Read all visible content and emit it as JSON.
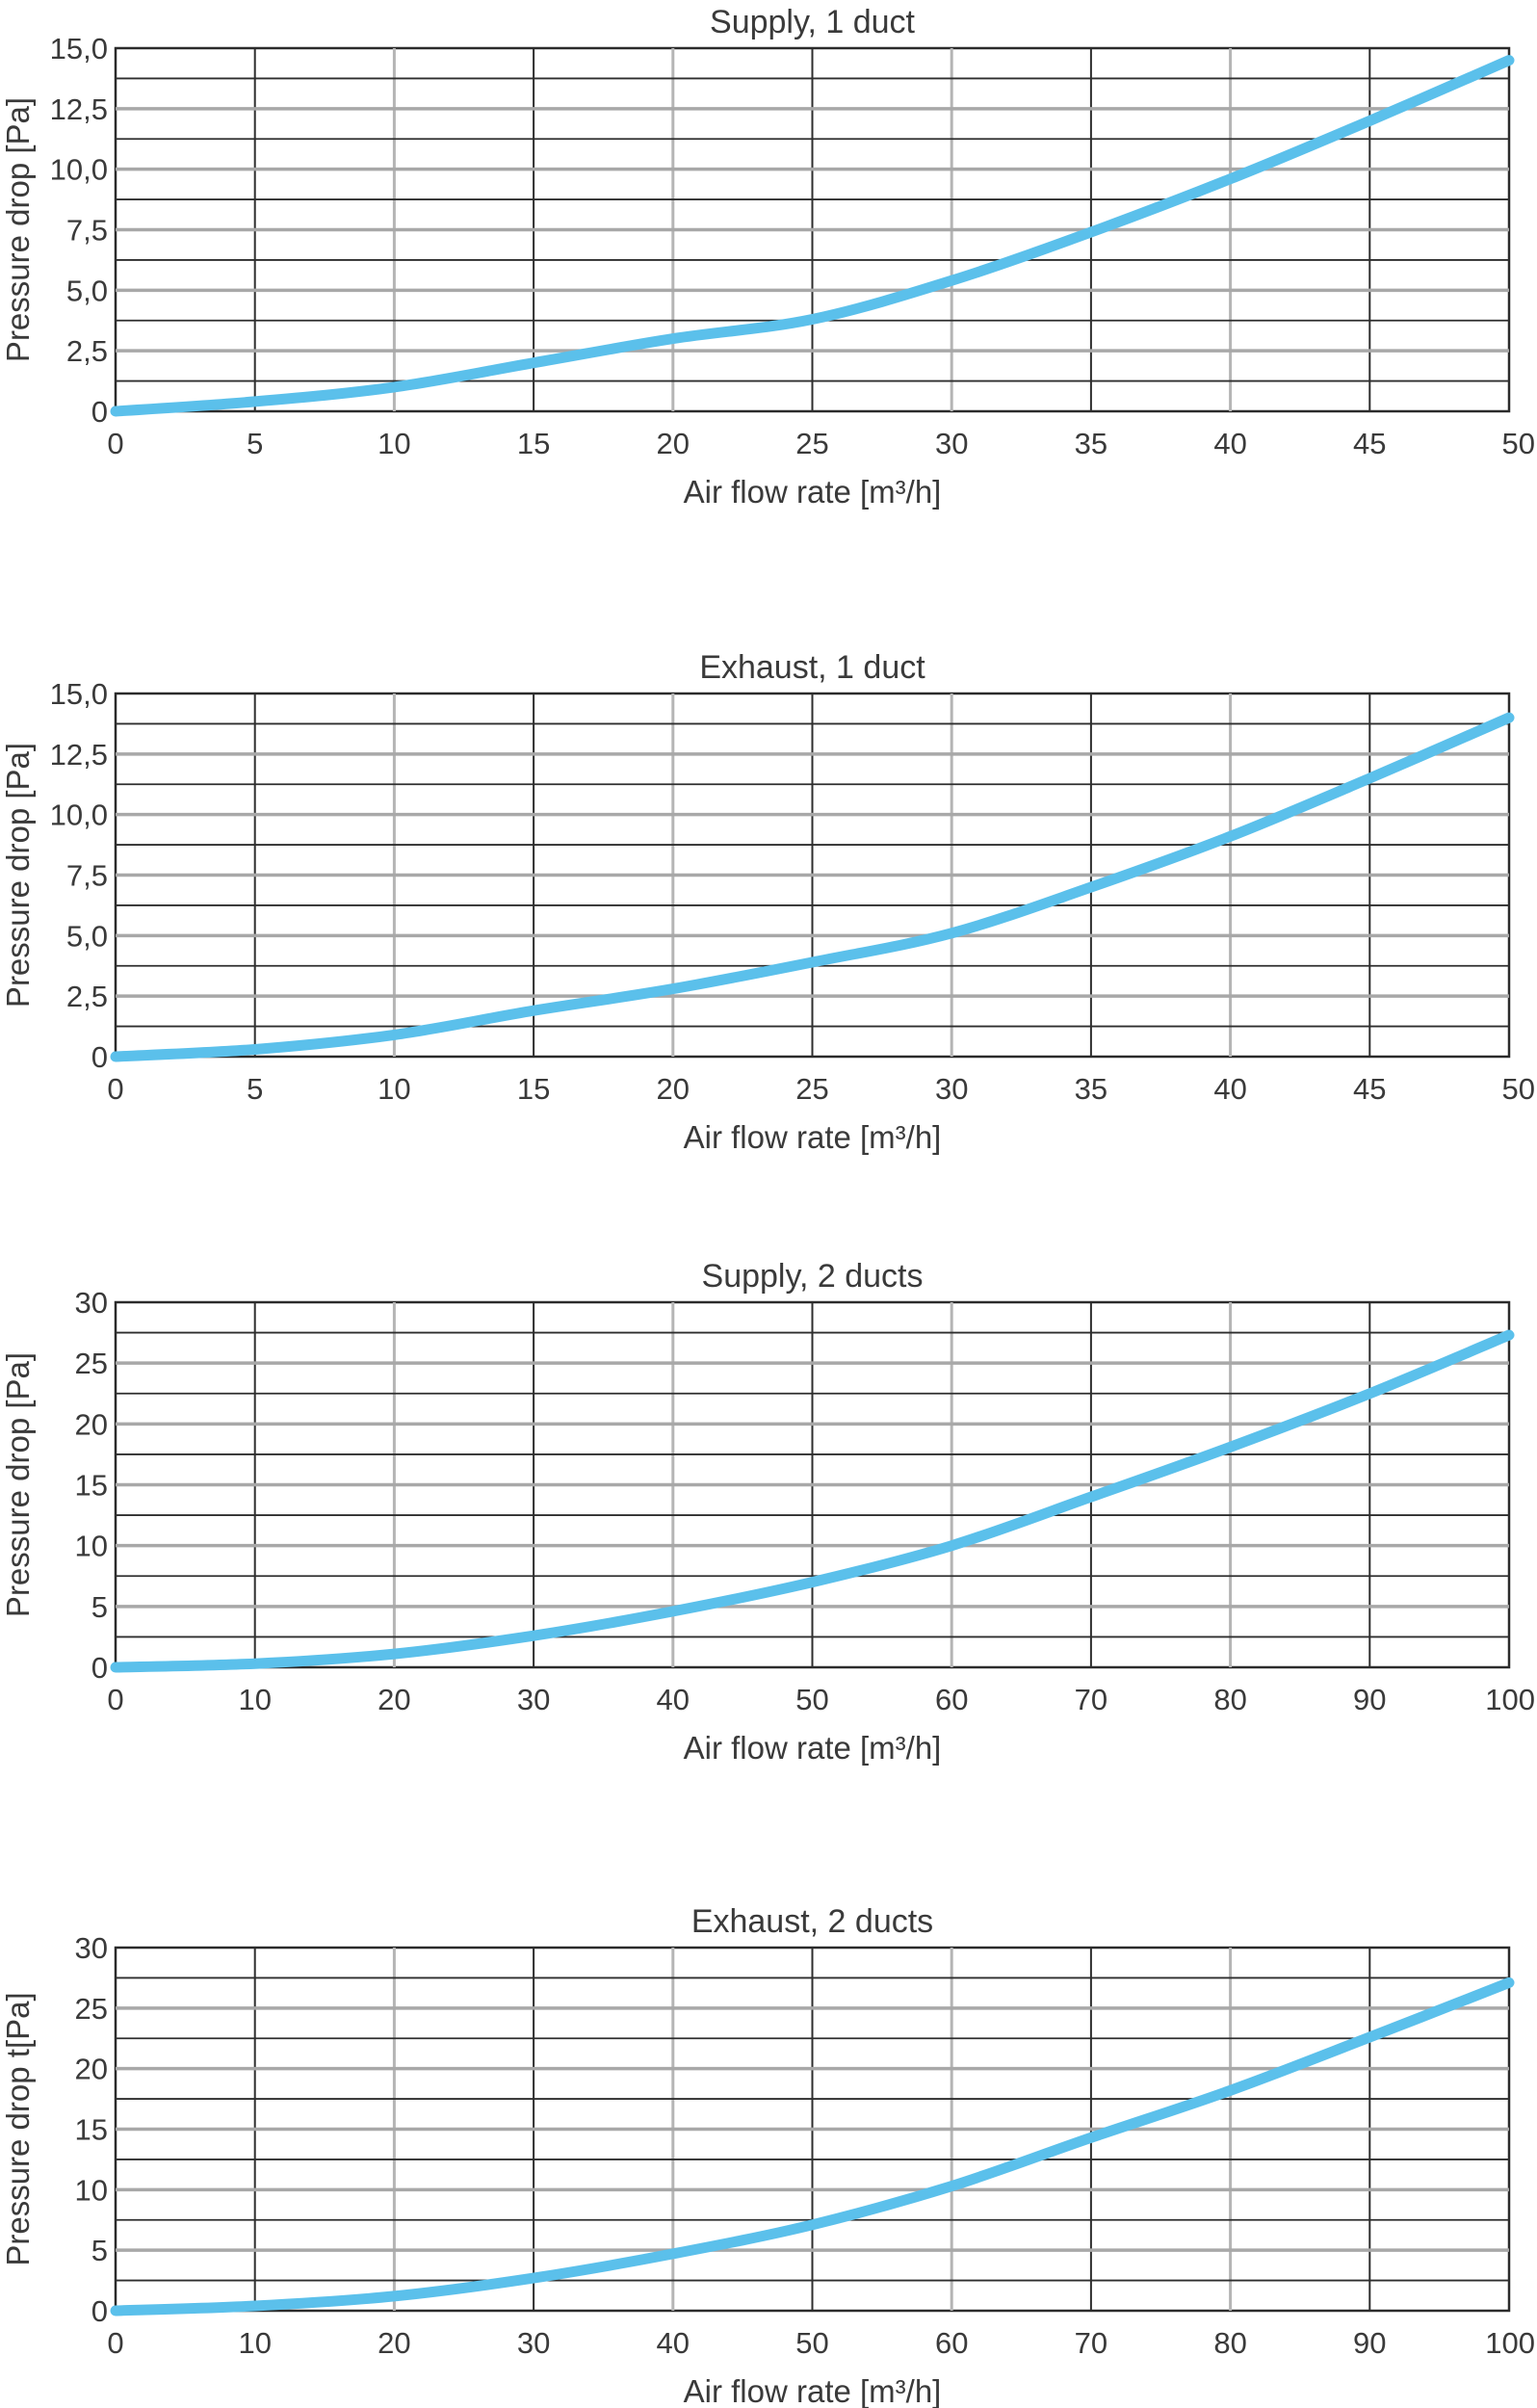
{
  "chart_data": [
    {
      "type": "line",
      "title": "Supply, 1 duct",
      "xlabel": "Air flow rate [m³/h]",
      "ylabel": "Pressure drop [Pa]",
      "xlim": [
        0,
        50
      ],
      "ylim": [
        0,
        15
      ],
      "x_ticks": [
        "0",
        "5",
        "10",
        "15",
        "20",
        "25",
        "30",
        "35",
        "40",
        "45",
        "50"
      ],
      "y_ticks": [
        "0",
        "2,5",
        "5,0",
        "7,5",
        "10,0",
        "12,5",
        "15,0"
      ],
      "grid": true,
      "line_color": "#5bc0eb",
      "series": [
        {
          "x": [
            0,
            5,
            10,
            15,
            20,
            25,
            30,
            35,
            40,
            45,
            50
          ],
          "y": [
            0,
            0.4,
            1.0,
            2.0,
            3.0,
            3.8,
            5.4,
            7.4,
            9.6,
            12.0,
            14.5
          ]
        }
      ]
    },
    {
      "type": "line",
      "title": "Exhaust, 1 duct",
      "xlabel": "Air flow rate [m³/h]",
      "ylabel": "Pressure drop [Pa]",
      "xlim": [
        0,
        50
      ],
      "ylim": [
        0,
        15
      ],
      "x_ticks": [
        "0",
        "5",
        "10",
        "15",
        "20",
        "25",
        "30",
        "35",
        "40",
        "45",
        "50"
      ],
      "y_ticks": [
        "0",
        "2,5",
        "5,0",
        "7,5",
        "10,0",
        "12,5",
        "15,0"
      ],
      "grid": true,
      "line_color": "#5bc0eb",
      "series": [
        {
          "x": [
            0,
            5,
            10,
            15,
            20,
            25,
            30,
            35,
            40,
            45,
            50
          ],
          "y": [
            0,
            0.3,
            0.9,
            1.9,
            2.8,
            3.9,
            5.1,
            7.0,
            9.1,
            11.5,
            14.0
          ]
        }
      ]
    },
    {
      "type": "line",
      "title": "Supply, 2 ducts",
      "xlabel": "Air flow rate [m³/h]",
      "ylabel": "Pressure drop [Pa]",
      "xlim": [
        0,
        100
      ],
      "ylim": [
        0,
        30
      ],
      "x_ticks": [
        "0",
        "10",
        "20",
        "30",
        "40",
        "50",
        "60",
        "70",
        "80",
        "90",
        "100"
      ],
      "y_ticks": [
        "0",
        "5",
        "10",
        "15",
        "20",
        "25",
        "30"
      ],
      "grid": true,
      "line_color": "#5bc0eb",
      "series": [
        {
          "x": [
            0,
            10,
            20,
            30,
            40,
            50,
            60,
            70,
            80,
            90,
            100
          ],
          "y": [
            0,
            0.3,
            1.1,
            2.6,
            4.6,
            7.0,
            10.0,
            14.0,
            18.1,
            22.5,
            27.3
          ]
        }
      ]
    },
    {
      "type": "line",
      "title": "Exhaust, 2 ducts",
      "xlabel": "Air flow rate [m³/h]",
      "ylabel": "Pressure drop t[Pa]",
      "xlim": [
        0,
        100
      ],
      "ylim": [
        0,
        30
      ],
      "x_ticks": [
        "0",
        "10",
        "20",
        "30",
        "40",
        "50",
        "60",
        "70",
        "80",
        "90",
        "100"
      ],
      "y_ticks": [
        "0",
        "5",
        "10",
        "15",
        "20",
        "25",
        "30"
      ],
      "grid": true,
      "line_color": "#5bc0eb",
      "series": [
        {
          "x": [
            0,
            10,
            20,
            30,
            40,
            50,
            60,
            70,
            80,
            90,
            100
          ],
          "y": [
            0,
            0.4,
            1.2,
            2.7,
            4.7,
            7.1,
            10.3,
            14.3,
            18.2,
            22.6,
            27.1
          ]
        }
      ]
    }
  ]
}
